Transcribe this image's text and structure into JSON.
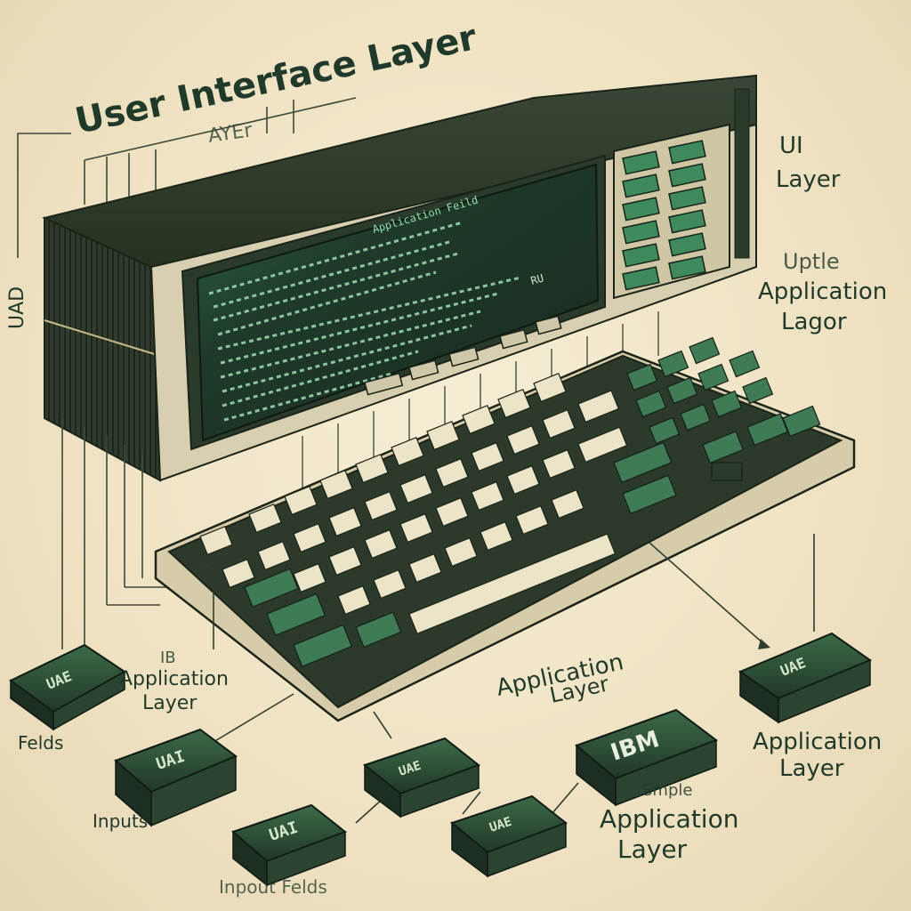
{
  "title": "User Interface Layer",
  "subtitle": "AYEr",
  "side_labels": {
    "left_vertical": "UAD",
    "ui_layer": {
      "line1": "UI",
      "line2": "Layer"
    },
    "right_app": {
      "line1": "Uptle",
      "line2": "Application",
      "line3": "Lagor"
    }
  },
  "center_label": {
    "line1": "Application",
    "line2": "Layer"
  },
  "left_label": {
    "line1": "IB",
    "line2": "Application",
    "line3": "Layer"
  },
  "bottom_right_label": {
    "line1": "Application",
    "line2": "Layer"
  },
  "simple_label": {
    "line1": "Smple",
    "line2": "Application",
    "line3": "Layer"
  },
  "misc_labels": {
    "felds": "Felds",
    "inputs": "Inputs",
    "inpout_felds": "Inpout Felds"
  },
  "modules": {
    "left_top": "UAE",
    "left_mid": "UAI",
    "left_bottom": "UAI",
    "center_top": "UAE",
    "center_bottom": "UAE",
    "ibm": "IBM",
    "right": "UAE"
  },
  "screen": {
    "header": "Application Feild",
    "side_code": "RU"
  },
  "colors": {
    "background": "#f1e6c8",
    "ink": "#1f3a2b",
    "case_dark": "#2e3b2d",
    "screen": "#1e3526",
    "screen_glow": "#3fb87a",
    "key_light": "#ece4c6",
    "key_green": "#3f7c56",
    "module_dark": "#2b4a33"
  }
}
